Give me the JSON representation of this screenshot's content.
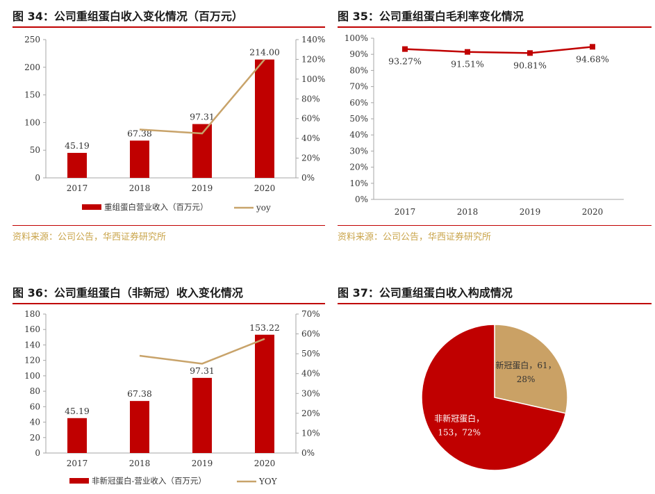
{
  "colors": {
    "bar": "#c00000",
    "line": "#c8a36a",
    "rule": "#c00000",
    "axis": "#a6a6a6",
    "source": "#c9a44a",
    "pie_main": "#c00000",
    "pie_other": "#caa165"
  },
  "fig34": {
    "title": "图 34：公司重组蛋白收入变化情况（百万元）",
    "source": "资料来源：公司公告，华西证券研究所"
  },
  "fig35": {
    "title": "图 35：公司重组蛋白毛利率变化情况",
    "source": "资料来源：公司公告，华西证券研究所"
  },
  "fig36": {
    "title": "图 36：公司重组蛋白（非新冠）收入变化情况"
  },
  "fig37": {
    "title": "图 37：公司重组蛋白收入构成情况"
  },
  "chart_data": [
    {
      "type": "bar",
      "categories": [
        "2017",
        "2018",
        "2019",
        "2020"
      ],
      "series": [
        {
          "name": "重组蛋白营业收入（百万元）",
          "type": "bar",
          "axis": "left",
          "values": [
            45.19,
            67.38,
            97.31,
            214.0
          ],
          "labels": [
            "45.19",
            "67.38",
            "97.31",
            "214.00"
          ]
        },
        {
          "name": "yoy",
          "type": "line",
          "axis": "right",
          "values": [
            null,
            49,
            45,
            120
          ]
        }
      ],
      "left_axis": {
        "min": 0,
        "max": 250,
        "ticks": [
          "0",
          "50",
          "100",
          "150",
          "200",
          "250"
        ]
      },
      "right_axis": {
        "min": 0,
        "max": 140,
        "ticks": [
          "0%",
          "20%",
          "40%",
          "60%",
          "80%",
          "100%",
          "120%",
          "140%"
        ]
      }
    },
    {
      "type": "line",
      "categories": [
        "2017",
        "2018",
        "2019",
        "2020"
      ],
      "series": [
        {
          "name": "",
          "values": [
            93.27,
            91.51,
            90.81,
            94.68
          ],
          "labels": [
            "93.27%",
            "91.51%",
            "90.81%",
            "94.68%"
          ]
        }
      ],
      "left_axis": {
        "min": 0,
        "max": 100,
        "ticks": [
          "0%",
          "10%",
          "20%",
          "30%",
          "40%",
          "50%",
          "60%",
          "70%",
          "80%",
          "90%",
          "100%"
        ]
      }
    },
    {
      "type": "bar",
      "categories": [
        "2017",
        "2018",
        "2019",
        "2020"
      ],
      "series": [
        {
          "name": "非新冠蛋白-营业收入（百万元）",
          "type": "bar",
          "axis": "left",
          "values": [
            45.19,
            67.38,
            97.31,
            153.22
          ],
          "labels": [
            "45.19",
            "67.38",
            "97.31",
            "153.22"
          ]
        },
        {
          "name": "YOY",
          "type": "line",
          "axis": "right",
          "values": [
            null,
            49,
            45,
            57.5
          ]
        }
      ],
      "left_axis": {
        "min": 0,
        "max": 180,
        "ticks": [
          "0",
          "20",
          "40",
          "60",
          "80",
          "100",
          "120",
          "140",
          "160",
          "180"
        ]
      },
      "right_axis": {
        "min": 0,
        "max": 70,
        "ticks": [
          "0%",
          "10%",
          "20%",
          "30%",
          "40%",
          "50%",
          "60%",
          "70%"
        ]
      }
    },
    {
      "type": "pie",
      "slices": [
        {
          "name": "新冠蛋白",
          "value": 61,
          "percent": 28,
          "label_lines": [
            "新冠蛋白，61，",
            "28%"
          ]
        },
        {
          "name": "非新冠蛋白",
          "value": 153,
          "percent": 72,
          "label_lines": [
            "非新冠蛋白，",
            "153，72%"
          ]
        }
      ]
    }
  ]
}
